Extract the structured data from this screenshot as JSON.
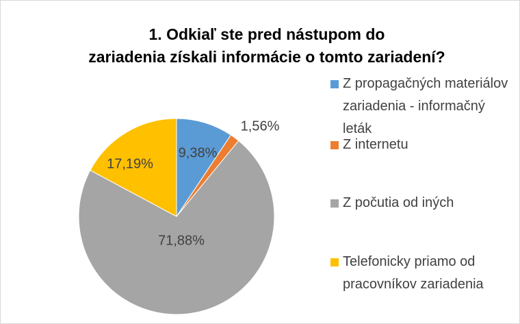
{
  "chart_data": {
    "type": "pie",
    "title": "1. Odkiaľ ste pred nástupom do zariadenia získali informácie o tomto zariadení?",
    "categories": [
      "Z propagačných materiálov zariadenia - informačný leták",
      "Z internetu",
      "Z počutia od iných",
      "Telefonicky priamo od pracovníkov zariadenia"
    ],
    "values": [
      9.38,
      1.56,
      71.88,
      17.19
    ],
    "value_labels": [
      "9,38%",
      "1,56%",
      "71,88%",
      "17,19%"
    ],
    "colors": [
      "#5b9bd5",
      "#ed7d31",
      "#a5a5a5",
      "#ffc000"
    ],
    "legend": "right"
  }
}
